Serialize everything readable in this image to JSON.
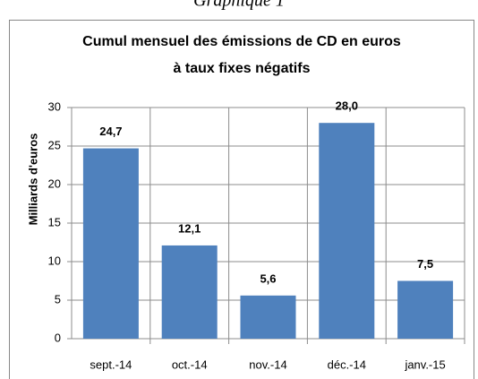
{
  "caption": "Graphique 1",
  "chart_data": {
    "type": "bar",
    "title": [
      "Cumul mensuel des émissions de CD en euros",
      "à taux fixes négatifs"
    ],
    "y_label": "Milliards  d'euros",
    "categories": [
      "sept.-14",
      "oct.-14",
      "nov.-14",
      "déc.-14",
      "janv.-15"
    ],
    "values": [
      24.7,
      12.1,
      5.6,
      28.0,
      7.5
    ],
    "value_labels": [
      "24,7",
      "12,1",
      "5,6",
      "28,0",
      "7,5"
    ],
    "color": "#4f81bd",
    "ylim": [
      0,
      30
    ],
    "yticks": [
      0,
      5,
      10,
      15,
      20,
      25,
      30
    ],
    "grid": true
  }
}
